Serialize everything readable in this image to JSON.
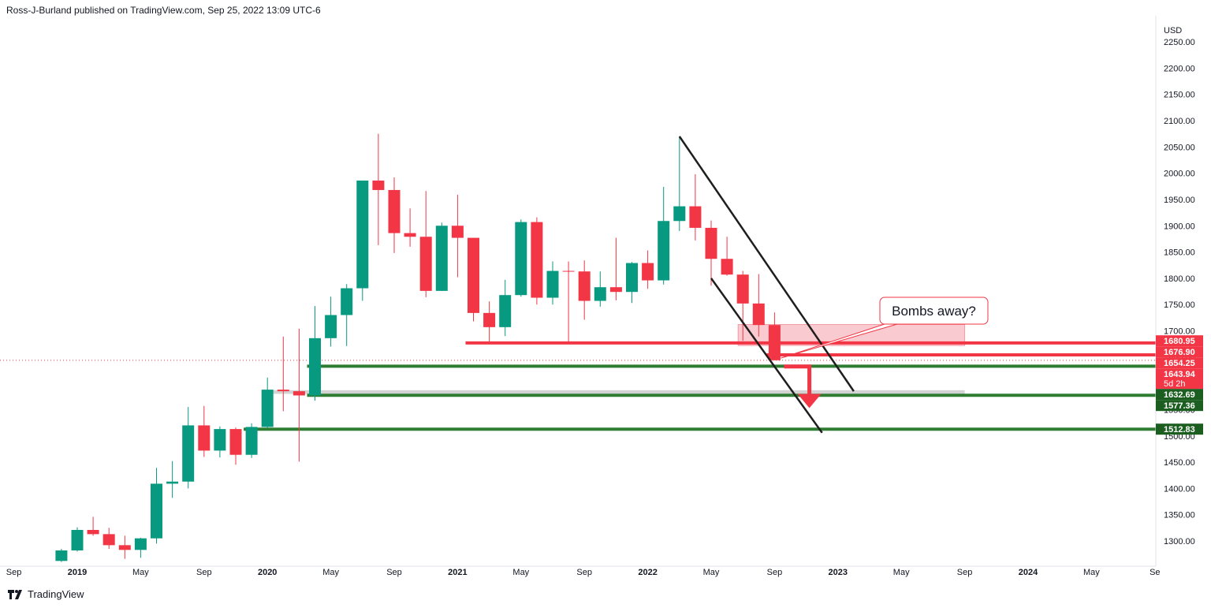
{
  "header": {
    "publisher": "Ross-J-Burland published on TradingView.com, Sep 25, 2022 13:09 UTC-6"
  },
  "footer": {
    "brand": "TradingView"
  },
  "colors": {
    "up": "#089981",
    "down": "#f23645",
    "green_line": "#2e7d32",
    "red_line": "#f23645",
    "zone": "#f7b5bc",
    "channel": "#1e1e1e",
    "grey_zone": "#c8c8c8"
  },
  "chart_data": {
    "type": "candlestick",
    "instrument_currency": "USD",
    "interval": "monthly",
    "y_ticks": [
      1300,
      1350,
      1400,
      1450,
      1500,
      1550,
      1600,
      1650,
      1700,
      1750,
      1800,
      1850,
      1900,
      1950,
      2000,
      2050,
      2100,
      2150,
      2200,
      2250
    ],
    "ylim": [
      1260,
      2262
    ],
    "x_labels": [
      {
        "label": "Sep",
        "date": "2018-09"
      },
      {
        "label": "2019",
        "date": "2019-01"
      },
      {
        "label": "May",
        "date": "2019-05"
      },
      {
        "label": "Sep",
        "date": "2019-09"
      },
      {
        "label": "2020",
        "date": "2020-01"
      },
      {
        "label": "May",
        "date": "2020-05"
      },
      {
        "label": "Sep",
        "date": "2020-09"
      },
      {
        "label": "2021",
        "date": "2021-01"
      },
      {
        "label": "May",
        "date": "2021-05"
      },
      {
        "label": "Sep",
        "date": "2021-09"
      },
      {
        "label": "2022",
        "date": "2022-01"
      },
      {
        "label": "May",
        "date": "2022-05"
      },
      {
        "label": "Sep",
        "date": "2022-09"
      },
      {
        "label": "2023",
        "date": "2023-01"
      },
      {
        "label": "May",
        "date": "2023-05"
      },
      {
        "label": "Sep",
        "date": "2023-09"
      },
      {
        "label": "2024",
        "date": "2024-01"
      },
      {
        "label": "May",
        "date": "2024-05"
      },
      {
        "label": "Se",
        "date": "2024-09"
      }
    ],
    "candles": [
      {
        "date": "2018-12",
        "open": 1262,
        "high": 1285,
        "low": 1260,
        "close": 1282
      },
      {
        "date": "2019-01",
        "open": 1282,
        "high": 1326,
        "low": 1280,
        "close": 1321
      },
      {
        "date": "2019-02",
        "open": 1321,
        "high": 1346,
        "low": 1310,
        "close": 1313
      },
      {
        "date": "2019-03",
        "open": 1313,
        "high": 1325,
        "low": 1285,
        "close": 1292
      },
      {
        "date": "2019-04",
        "open": 1292,
        "high": 1310,
        "low": 1266,
        "close": 1283
      },
      {
        "date": "2019-05",
        "open": 1283,
        "high": 1306,
        "low": 1268,
        "close": 1305
      },
      {
        "date": "2019-06",
        "open": 1305,
        "high": 1439,
        "low": 1295,
        "close": 1409
      },
      {
        "date": "2019-07",
        "open": 1409,
        "high": 1452,
        "low": 1382,
        "close": 1413
      },
      {
        "date": "2019-08",
        "open": 1413,
        "high": 1555,
        "low": 1400,
        "close": 1520
      },
      {
        "date": "2019-09",
        "open": 1520,
        "high": 1557,
        "low": 1460,
        "close": 1472
      },
      {
        "date": "2019-10",
        "open": 1472,
        "high": 1518,
        "low": 1459,
        "close": 1513
      },
      {
        "date": "2019-11",
        "open": 1513,
        "high": 1516,
        "low": 1445,
        "close": 1464
      },
      {
        "date": "2019-12",
        "open": 1464,
        "high": 1524,
        "low": 1458,
        "close": 1517
      },
      {
        "date": "2020-01",
        "open": 1517,
        "high": 1611,
        "low": 1515,
        "close": 1588
      },
      {
        "date": "2020-02",
        "open": 1588,
        "high": 1689,
        "low": 1547,
        "close": 1585
      },
      {
        "date": "2020-03",
        "open": 1585,
        "high": 1704,
        "low": 1451,
        "close": 1577
      },
      {
        "date": "2020-04",
        "open": 1577,
        "high": 1747,
        "low": 1567,
        "close": 1686
      },
      {
        "date": "2020-05",
        "open": 1686,
        "high": 1765,
        "low": 1670,
        "close": 1730
      },
      {
        "date": "2020-06",
        "open": 1730,
        "high": 1789,
        "low": 1671,
        "close": 1781
      },
      {
        "date": "2020-07",
        "open": 1781,
        "high": 1984,
        "low": 1757,
        "close": 1986
      },
      {
        "date": "2020-08",
        "open": 1986,
        "high": 2075,
        "low": 1863,
        "close": 1968
      },
      {
        "date": "2020-09",
        "open": 1968,
        "high": 1992,
        "low": 1848,
        "close": 1886
      },
      {
        "date": "2020-10",
        "open": 1886,
        "high": 1933,
        "low": 1860,
        "close": 1879
      },
      {
        "date": "2020-11",
        "open": 1879,
        "high": 1966,
        "low": 1764,
        "close": 1776
      },
      {
        "date": "2020-12",
        "open": 1776,
        "high": 1906,
        "low": 1776,
        "close": 1900
      },
      {
        "date": "2021-01",
        "open": 1900,
        "high": 1959,
        "low": 1802,
        "close": 1877
      },
      {
        "date": "2021-02",
        "open": 1877,
        "high": 1873,
        "low": 1718,
        "close": 1734
      },
      {
        "date": "2021-03",
        "open": 1734,
        "high": 1756,
        "low": 1676,
        "close": 1707
      },
      {
        "date": "2021-04",
        "open": 1707,
        "high": 1797,
        "low": 1690,
        "close": 1768
      },
      {
        "date": "2021-05",
        "open": 1768,
        "high": 1912,
        "low": 1765,
        "close": 1907
      },
      {
        "date": "2021-06",
        "open": 1907,
        "high": 1916,
        "low": 1750,
        "close": 1763
      },
      {
        "date": "2021-07",
        "open": 1763,
        "high": 1832,
        "low": 1750,
        "close": 1814
      },
      {
        "date": "2021-08",
        "open": 1814,
        "high": 1832,
        "low": 1679,
        "close": 1813
      },
      {
        "date": "2021-09",
        "open": 1813,
        "high": 1834,
        "low": 1721,
        "close": 1757
      },
      {
        "date": "2021-10",
        "open": 1757,
        "high": 1813,
        "low": 1746,
        "close": 1783
      },
      {
        "date": "2021-11",
        "open": 1783,
        "high": 1877,
        "low": 1758,
        "close": 1774
      },
      {
        "date": "2021-12",
        "open": 1774,
        "high": 1831,
        "low": 1753,
        "close": 1829
      },
      {
        "date": "2022-01",
        "open": 1829,
        "high": 1853,
        "low": 1780,
        "close": 1796
      },
      {
        "date": "2022-02",
        "open": 1796,
        "high": 1974,
        "low": 1788,
        "close": 1909
      },
      {
        "date": "2022-03",
        "open": 1909,
        "high": 2070,
        "low": 1890,
        "close": 1937
      },
      {
        "date": "2022-04",
        "open": 1937,
        "high": 1998,
        "low": 1872,
        "close": 1896
      },
      {
        "date": "2022-05",
        "open": 1896,
        "high": 1910,
        "low": 1786,
        "close": 1837
      },
      {
        "date": "2022-06",
        "open": 1837,
        "high": 1879,
        "low": 1805,
        "close": 1807
      },
      {
        "date": "2022-07",
        "open": 1807,
        "high": 1814,
        "low": 1681,
        "close": 1752
      },
      {
        "date": "2022-08",
        "open": 1752,
        "high": 1808,
        "low": 1689,
        "close": 1711
      },
      {
        "date": "2022-09",
        "open": 1711,
        "high": 1735,
        "low": 1644,
        "close": 1644
      }
    ],
    "price_labels": [
      {
        "value": 1680.95,
        "text": "1680.95",
        "color": "#f23645"
      },
      {
        "value": 1676.9,
        "text": "1676.90",
        "color": "#f23645"
      },
      {
        "value": 1654.25,
        "text": "1654.25",
        "color": "#f23645"
      },
      {
        "value": 1643.94,
        "text": "1643.94",
        "color": "#f23645",
        "sub": "5d 2h"
      },
      {
        "value": 1632.69,
        "text": "1632.69",
        "color": "#1b5e20"
      },
      {
        "value": 1577.36,
        "text": "1577.36",
        "color": "#1b5e20"
      },
      {
        "value": 1512.83,
        "text": "1512.83",
        "color": "#1b5e20"
      }
    ],
    "horizontal_lines": [
      {
        "value": 1632.69,
        "color": "#2e7d32",
        "from": "2020-04"
      },
      {
        "value": 1577.36,
        "color": "#2e7d32",
        "from": "2020-04"
      },
      {
        "value": 1512.83,
        "color": "#2e7d32",
        "from": "2019-12"
      },
      {
        "value": 1676.9,
        "color": "#f23645",
        "from": "2021-02"
      },
      {
        "value": 1654.25,
        "color": "#f23645",
        "from": "2022-09"
      }
    ],
    "zones": [
      {
        "top": 1712,
        "bottom": 1672,
        "from": "2022-07",
        "to": "2023-09",
        "color": "#f7b5bc"
      },
      {
        "top": 1587,
        "bottom": 1580,
        "from": "2020-01",
        "to": "2023-09",
        "color": "#c8c8c8"
      }
    ],
    "channel_lines": [
      {
        "from": {
          "date": "2022-03",
          "value": 2070
        },
        "to": {
          "date": "2023-02",
          "value": 1585
        }
      },
      {
        "from": {
          "date": "2022-05",
          "value": 1800
        },
        "to": {
          "date": "2022-12",
          "value": 1506
        }
      }
    ],
    "arrow": {
      "start": {
        "date": "2022-10",
        "value": 1632
      },
      "end": {
        "date": "2022-11",
        "value": 1565
      },
      "color": "#f23645"
    },
    "annotation": {
      "text": "Bombs away?",
      "anchor": {
        "date": "2022-09",
        "value": 1648
      }
    },
    "current_price_line": {
      "value": 1643.94
    }
  }
}
